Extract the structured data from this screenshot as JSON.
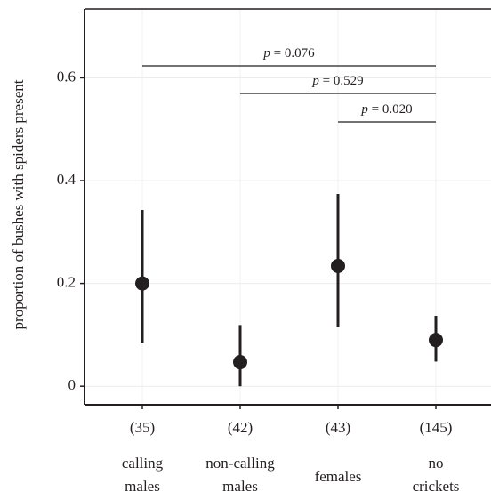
{
  "chart_data": {
    "type": "pointrange",
    "y_label": "proportion of bushes with spiders present",
    "categories": [
      [
        "calling",
        "males"
      ],
      [
        "non-calling",
        "males"
      ],
      [
        "females"
      ],
      [
        "no",
        "crickets"
      ]
    ],
    "counts": [
      "(35)",
      "(42)",
      "(43)",
      "(145)"
    ],
    "values": [
      0.2,
      0.047,
      0.234,
      0.09
    ],
    "lower": [
      0.085,
      0.0,
      0.116,
      0.048
    ],
    "upper": [
      0.343,
      0.119,
      0.374,
      0.137
    ],
    "color": "#231f20",
    "ylim": [
      -0.036,
      0.734
    ],
    "yticks": [
      0,
      0.2,
      0.4,
      0.6
    ],
    "grid": true,
    "comparisons": [
      {
        "label": "p = 0.076",
        "between": [
          0,
          3
        ]
      },
      {
        "label": "p = 0.529",
        "between": [
          1,
          3
        ]
      },
      {
        "label": "p = 0.020",
        "between": [
          2,
          3
        ]
      }
    ]
  }
}
